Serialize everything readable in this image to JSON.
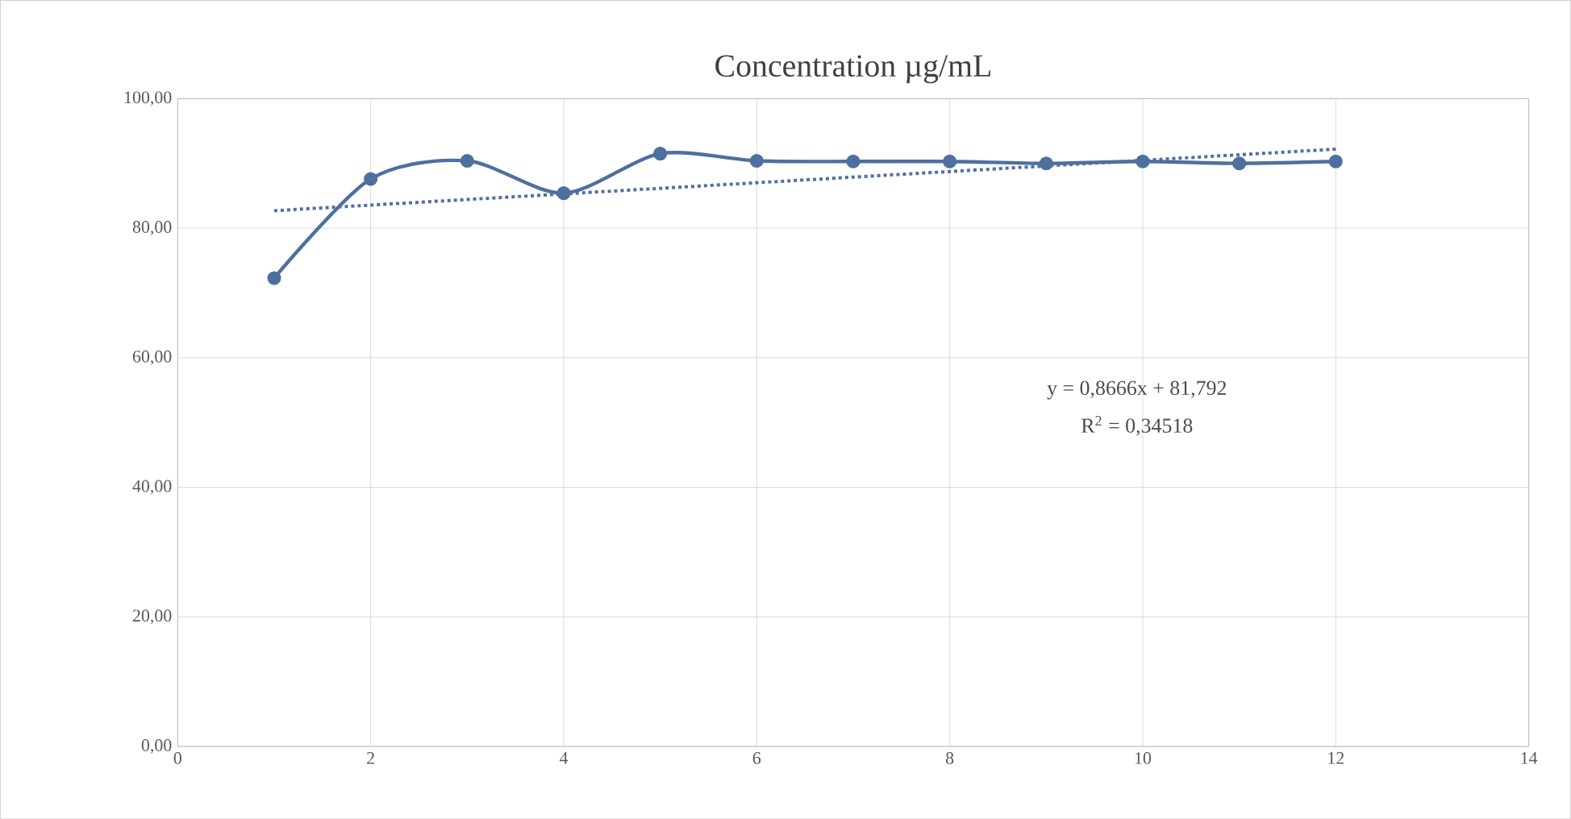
{
  "chart_data": {
    "type": "line",
    "title": "Concentration µg/mL",
    "xlim": [
      0,
      14
    ],
    "xticks": [
      0,
      2,
      4,
      6,
      8,
      10,
      12,
      14
    ],
    "ylim": [
      0,
      100
    ],
    "yticks": [
      {
        "value": 0,
        "label": "0,00"
      },
      {
        "value": 20,
        "label": "20,00"
      },
      {
        "value": 40,
        "label": "40,00"
      },
      {
        "value": 60,
        "label": "60,00"
      },
      {
        "value": 80,
        "label": "80,00"
      },
      {
        "value": 100,
        "label": "100,00"
      }
    ],
    "grid": true,
    "series": [
      {
        "color": "#4f6fa0",
        "x": [
          1,
          2,
          3,
          4,
          5,
          6,
          7,
          8,
          9,
          10,
          11,
          12
        ],
        "values": [
          72.3,
          87.6,
          90.4,
          85.4,
          91.5,
          90.4,
          90.3,
          90.3,
          90.0,
          90.3,
          90.0,
          90.3
        ],
        "marker": "circle",
        "line_style": "solid"
      },
      {
        "color": "#4f6fa0",
        "x": [
          1,
          12
        ],
        "values": [
          82.7,
          92.2
        ],
        "marker": "none",
        "line_style": "dotted"
      }
    ],
    "annotations": [
      "y = 0,8666x + 81,792",
      "R$^{2}$ = 0,34518"
    ]
  }
}
